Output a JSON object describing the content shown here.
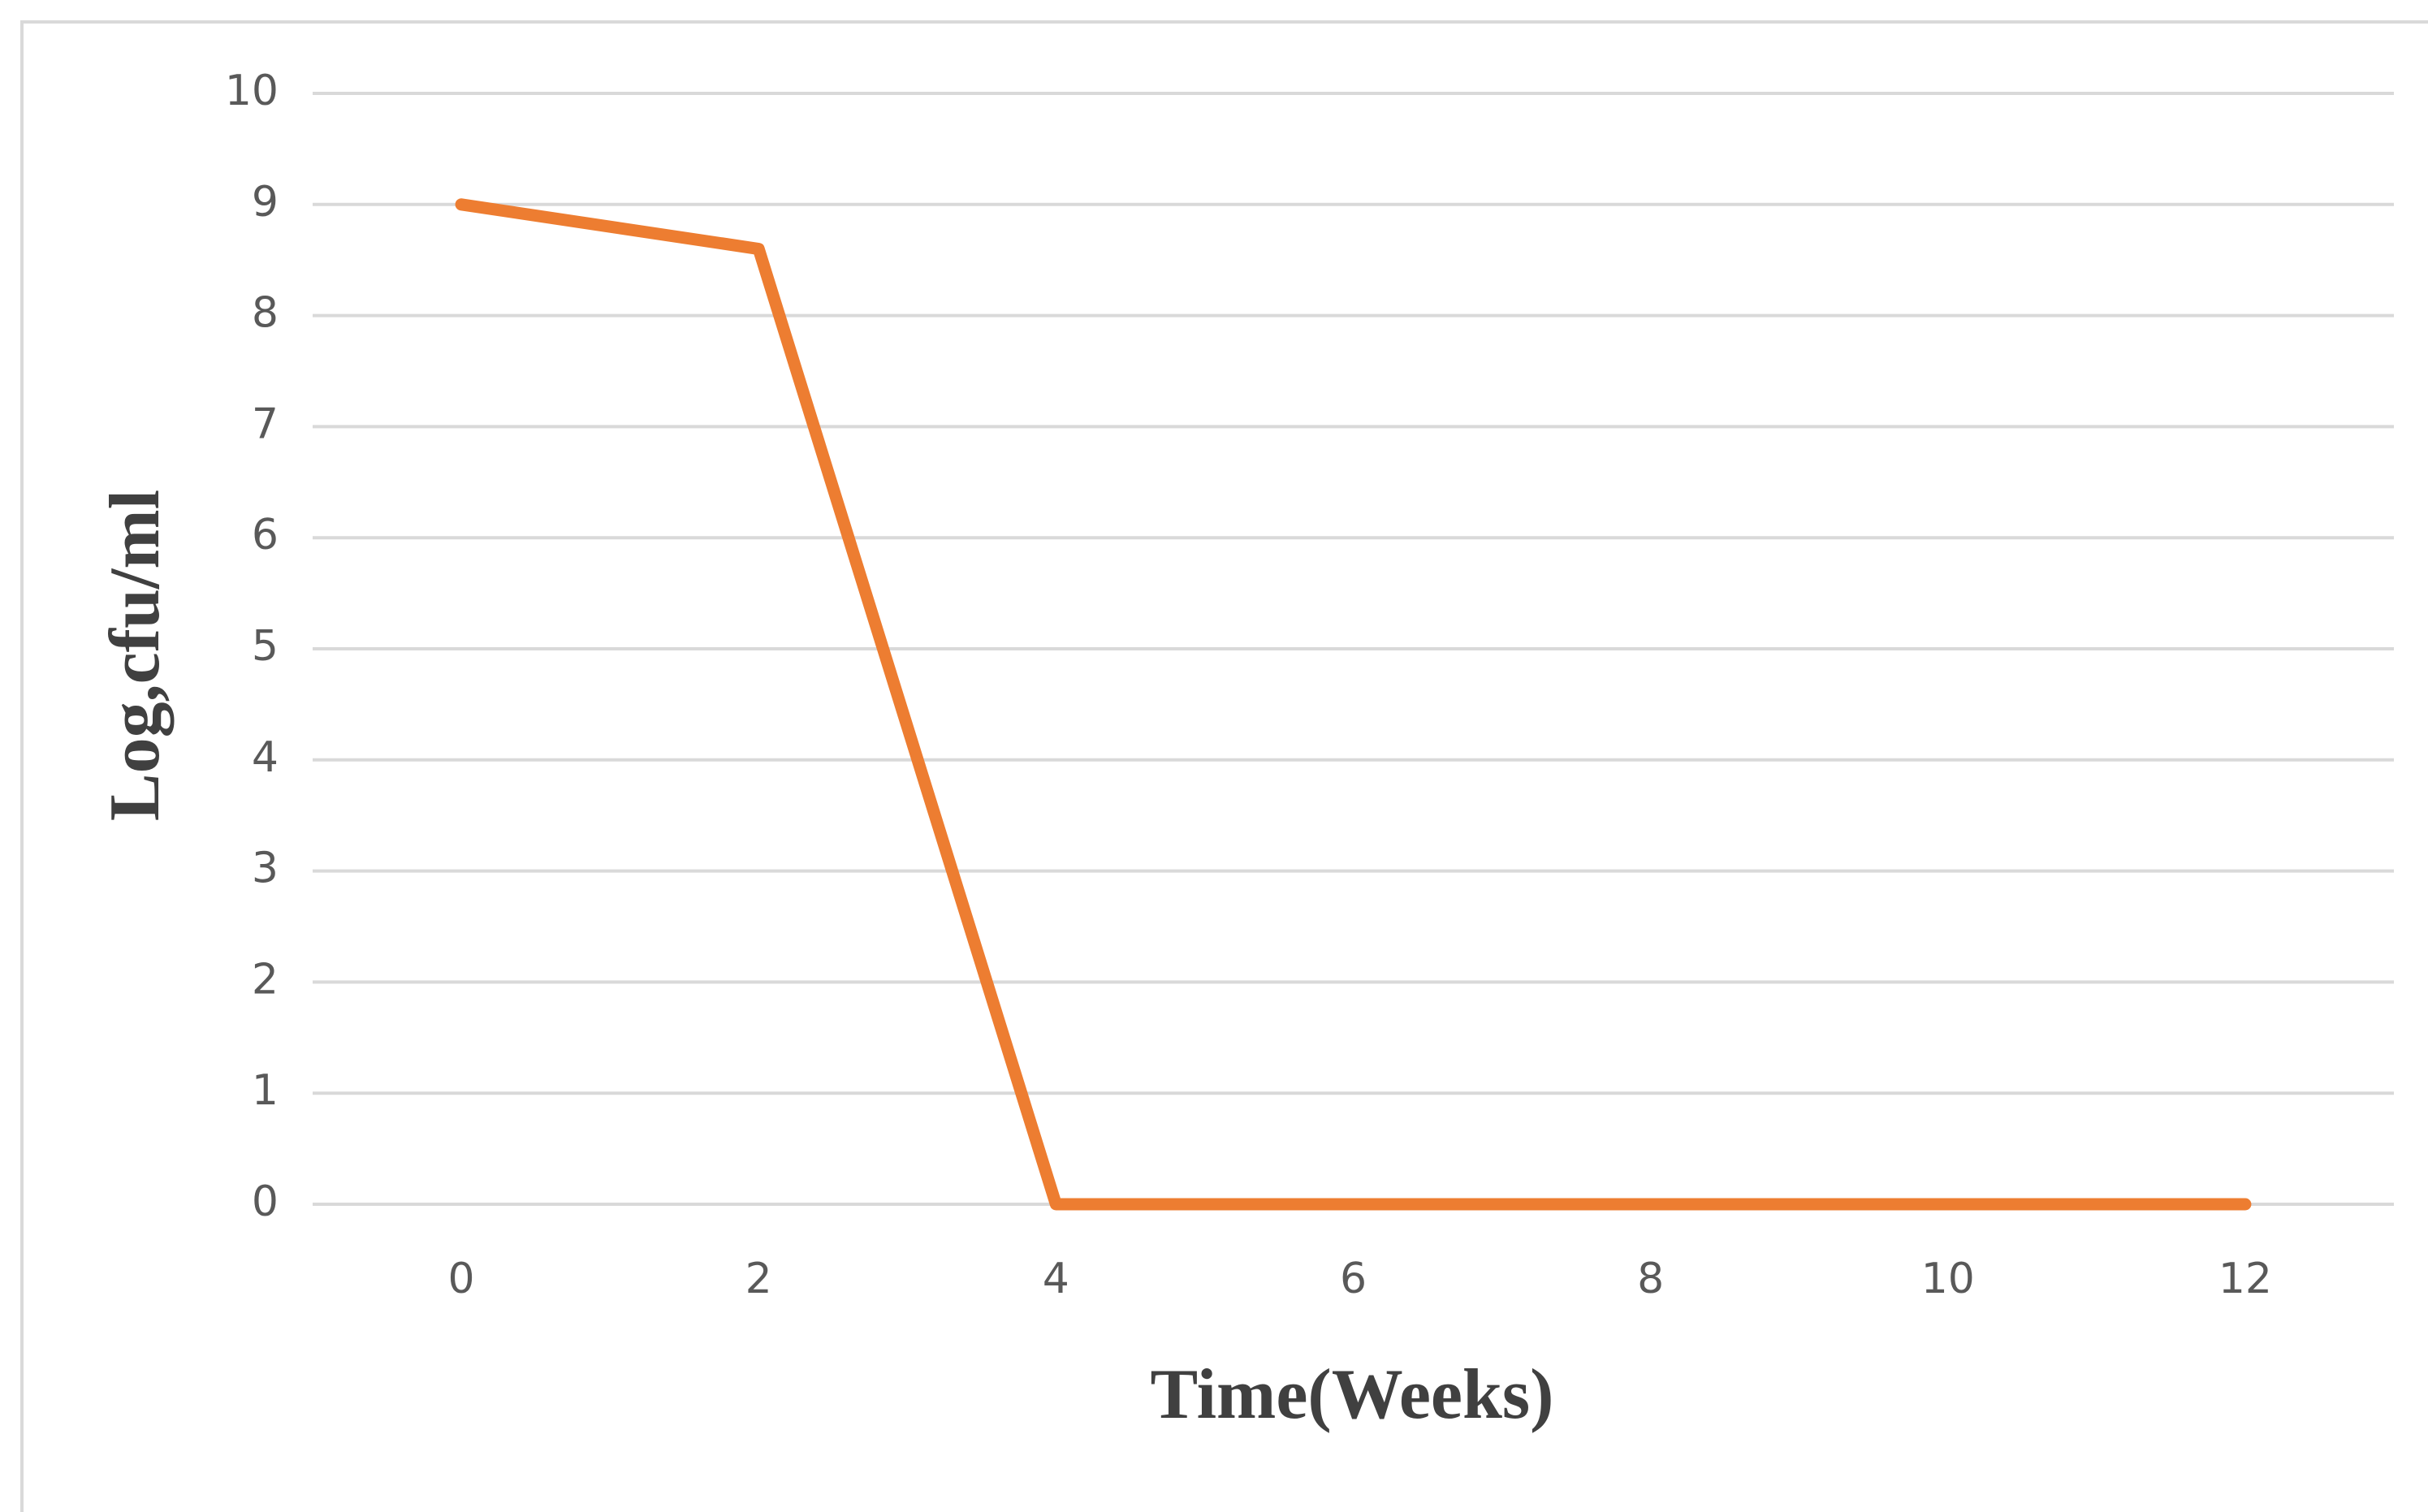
{
  "chart_data": {
    "type": "line",
    "x_label": "Time(Weeks)",
    "y_label": "Log,cfu/ml",
    "categories": [
      "0",
      "2",
      "4",
      "6",
      "8",
      "10",
      "12"
    ],
    "series": [
      {
        "name": "Log,cfu/ml",
        "color": "#ed7d31",
        "values": [
          9,
          8.6,
          0,
          0,
          0,
          0,
          0
        ]
      }
    ],
    "ylim": [
      0,
      10
    ],
    "yticks": [
      0,
      1,
      2,
      3,
      4,
      5,
      6,
      7,
      8,
      9,
      10
    ],
    "grid": true
  }
}
